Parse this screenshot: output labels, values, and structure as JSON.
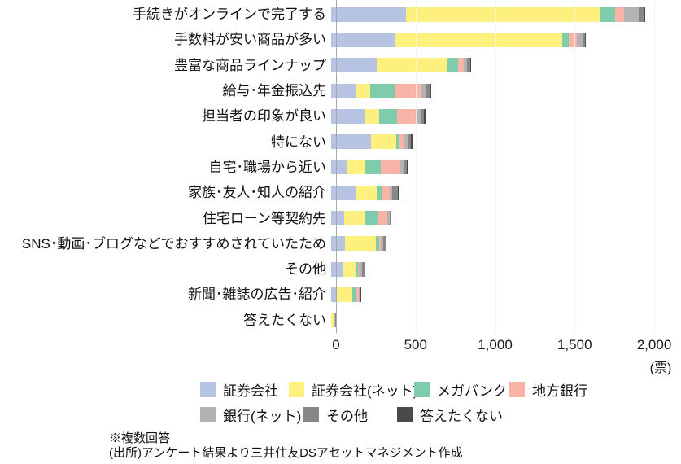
{
  "chart_data": {
    "type": "bar",
    "orientation": "horizontal",
    "title": "",
    "xlabel": "",
    "ylabel": "",
    "unit_label": "(票)",
    "xlim": [
      0,
      2000
    ],
    "x_ticks": [
      0,
      500,
      1000,
      1500,
      2000
    ],
    "x_tick_labels": [
      "0",
      "500",
      "1,000",
      "1,500",
      "2,000"
    ],
    "grid": true,
    "legend_position": "bottom",
    "categories": [
      "手続きがオンラインで完了する",
      "手数料が安い商品が多い",
      "豊富な商品ラインナップ",
      "給与･年金振込先",
      "担当者の印象が良い",
      "特にない",
      "自宅･職場から近い",
      "家族･友人･知人の紹介",
      "住宅ローン等契約先",
      "SNS･動画･ブログなどでおすすめされていたため",
      "その他",
      "新聞･雑誌の広告･紹介",
      "答えたくない"
    ],
    "series": [
      {
        "name": "証券会社",
        "color": "#b6c3e2",
        "values": [
          470,
          405,
          288,
          151,
          209,
          249,
          104,
          156,
          82,
          87,
          79,
          36,
          2
        ]
      },
      {
        "name": "証券会社(ネット)",
        "color": "#fdf07e",
        "values": [
          1220,
          1050,
          446,
          94,
          94,
          162,
          105,
          128,
          134,
          192,
          77,
          99,
          12
        ]
      },
      {
        "name": "メガバンク",
        "color": "#7eccab",
        "values": [
          95,
          40,
          64,
          156,
          110,
          12,
          103,
          36,
          77,
          23,
          12,
          24,
          2
        ]
      },
      {
        "name": "地方銀行",
        "color": "#f9b3a7",
        "values": [
          55,
          50,
          38,
          161,
          123,
          39,
          125,
          50,
          60,
          12,
          8,
          14,
          5
        ]
      },
      {
        "name": "銀行(ネット)",
        "color": "#b3b3b3",
        "values": [
          95,
          43,
          18,
          31,
          26,
          26,
          22,
          12,
          13,
          12,
          18,
          7,
          3
        ]
      },
      {
        "name": "その他",
        "color": "#878787",
        "values": [
          30,
          8,
          20,
          24,
          20,
          14,
          15,
          36,
          9,
          16,
          14,
          5,
          5
        ]
      },
      {
        "name": "答えたくない",
        "color": "#4a4a4a",
        "values": [
          10,
          3,
          4,
          10,
          11,
          15,
          11,
          12,
          4,
          6,
          4,
          2,
          4
        ]
      }
    ]
  },
  "footnotes": {
    "multi_answer": "※複数回答",
    "source": "(出所)アンケート結果より三井住友DSアセットマネジメント作成"
  }
}
